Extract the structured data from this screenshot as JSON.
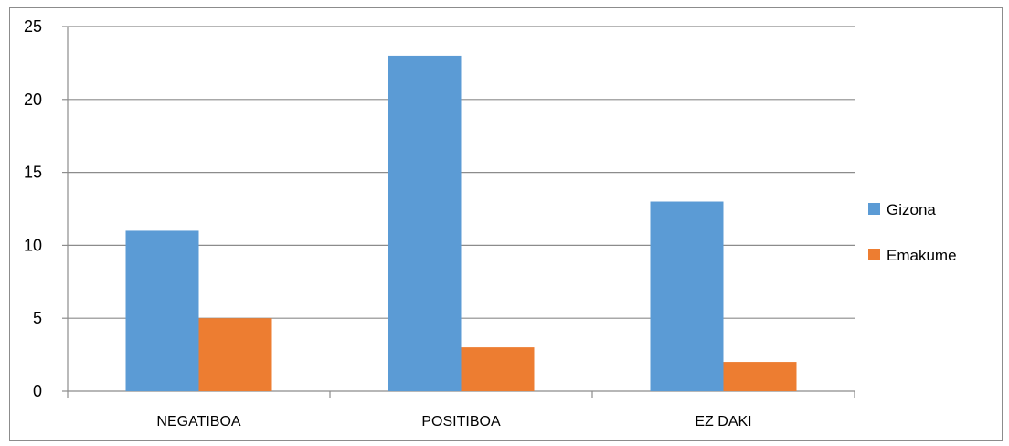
{
  "chart_data": {
    "type": "bar",
    "title": "",
    "xlabel": "",
    "ylabel": "",
    "categories": [
      "NEGATIBOA",
      "POSITIBOA",
      "EZ DAKI"
    ],
    "series": [
      {
        "name": "Gizona",
        "values": [
          11,
          23,
          13
        ],
        "color": "#5b9bd5"
      },
      {
        "name": "Emakume",
        "values": [
          5,
          3,
          2
        ],
        "color": "#ed7d31"
      }
    ],
    "ylim": [
      0,
      25
    ],
    "yticks": [
      0,
      5,
      10,
      15,
      20,
      25
    ],
    "grid": true,
    "legend": "right"
  }
}
